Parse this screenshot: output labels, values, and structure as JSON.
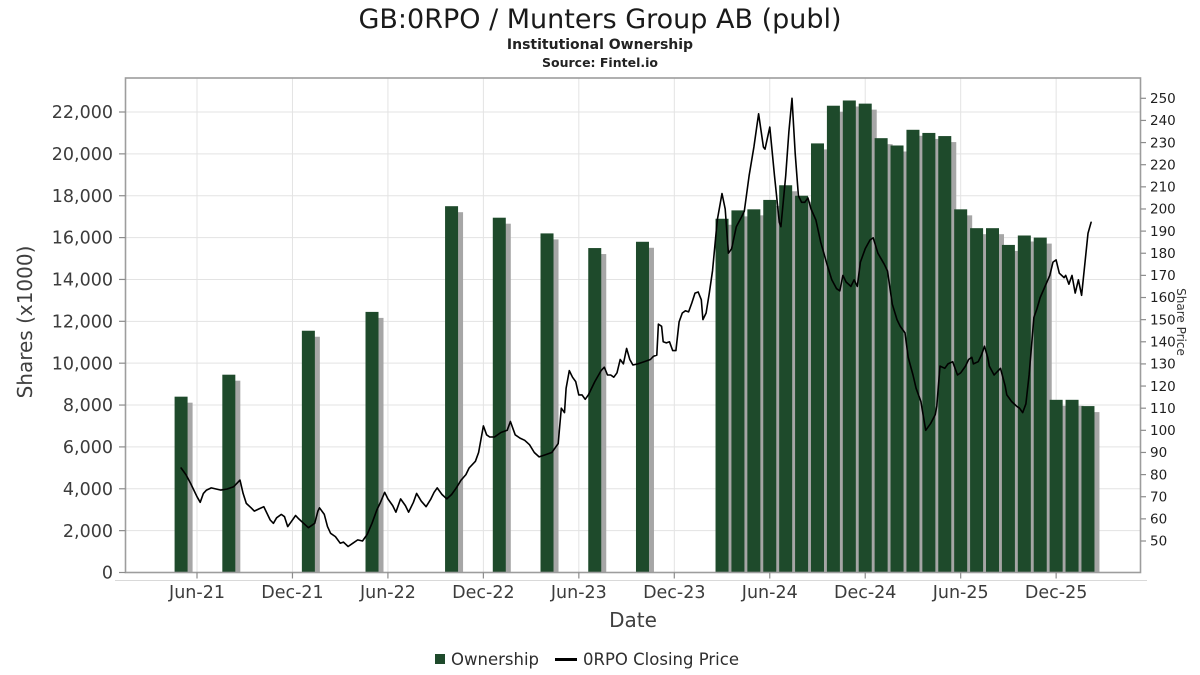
{
  "header": {
    "title": "GB:0RPO / Munters Group AB (publ)",
    "subtitle": "Institutional Ownership",
    "source": "Source: Fintel.io"
  },
  "legend": {
    "ownership_label": "Ownership",
    "price_label": "0RPO Closing Price"
  },
  "axes": {
    "x": {
      "label": "Date"
    },
    "y_left": {
      "label": "Shares (x1000)"
    },
    "y_right": {
      "label": "Share Price"
    }
  },
  "colors": {
    "bar": "#1e4a2b",
    "bar_shadow": "#a6a6a6",
    "line": "#000000",
    "grid": "#e3e3e3",
    "border": "#9d9d9d",
    "tick": "#8c8c8c",
    "tick_text": "#3c3c3c",
    "right_tick_text": "#1f1f1f"
  },
  "chart_data": {
    "type": "bar+line",
    "title": "GB:0RPO / Munters Group AB (publ)",
    "subtitle": "Institutional Ownership",
    "source": "Source: Fintel.io",
    "xlabel": "Date",
    "x_ticks": [
      "Jun-21",
      "Dec-21",
      "Jun-22",
      "Dec-22",
      "Jun-23",
      "Dec-23",
      "Jun-24",
      "Dec-24",
      "Jun-25",
      "Dec-25"
    ],
    "y_left": {
      "label": "Shares (x1000)",
      "ticks": [
        0,
        2000,
        4000,
        6000,
        8000,
        10000,
        12000,
        14000,
        16000,
        18000,
        20000,
        22000
      ],
      "range": [
        0,
        23600
      ]
    },
    "y_right": {
      "label": "Share Price",
      "ticks": [
        50,
        60,
        70,
        80,
        90,
        100,
        110,
        120,
        130,
        140,
        150,
        160,
        170,
        180,
        190,
        200,
        210,
        220,
        230,
        240,
        250
      ],
      "range": [
        36,
        259
      ]
    },
    "legend_position": "bottom",
    "grid": true,
    "bar_series": {
      "name": "Ownership",
      "type": "bar",
      "axis": "left",
      "unit": "shares x1000",
      "categories": [
        "May-21",
        "Aug-21",
        "Jan-22",
        "May-22",
        "Oct-22",
        "Jan-23",
        "Apr-23",
        "Jul-23",
        "Oct-23",
        "Mar-24",
        "Apr-24",
        "May-24",
        "Jun-24",
        "Jul-24",
        "Aug-24",
        "Sep-24",
        "Oct-24",
        "Nov-24",
        "Dec-24",
        "Jan-25",
        "Feb-25",
        "Mar-25",
        "Apr-25",
        "May-25",
        "Jun-25",
        "Jul-25",
        "Aug-25",
        "Sep-25",
        "Oct-25",
        "Nov-25",
        "Dec-25",
        "Jan-26",
        "Feb-26"
      ],
      "values": [
        8400,
        9450,
        11550,
        12450,
        17500,
        16950,
        16200,
        15500,
        15800,
        16900,
        17300,
        17350,
        17800,
        18500,
        18000,
        20500,
        22300,
        22550,
        22400,
        20750,
        20400,
        21150,
        21000,
        20850,
        17350,
        16450,
        16450,
        15650,
        16100,
        16000,
        8250,
        8250,
        7950
      ]
    },
    "line_series": {
      "name": "0RPO Closing Price",
      "type": "line",
      "axis": "right",
      "x_unit": "months_after_Jun-2021",
      "points": [
        [
          -1.0,
          83
        ],
        [
          -0.7,
          80
        ],
        [
          -0.4,
          76
        ],
        [
          0,
          70
        ],
        [
          0.2,
          67.5
        ],
        [
          0.4,
          71.5
        ],
        [
          0.6,
          73
        ],
        [
          0.9,
          74
        ],
        [
          1.2,
          73.5
        ],
        [
          1.5,
          73
        ],
        [
          1.9,
          73.5
        ],
        [
          2.3,
          74.5
        ],
        [
          2.7,
          77.5
        ],
        [
          2.9,
          71.5
        ],
        [
          3.1,
          67
        ],
        [
          3.4,
          65
        ],
        [
          3.6,
          63.5
        ],
        [
          3.9,
          64.5
        ],
        [
          4.2,
          65.5
        ],
        [
          4.6,
          59.5
        ],
        [
          4.8,
          58
        ],
        [
          5.0,
          60.5
        ],
        [
          5.3,
          62
        ],
        [
          5.5,
          61
        ],
        [
          5.7,
          56.5
        ],
        [
          5.9,
          58.5
        ],
        [
          6.2,
          61.5
        ],
        [
          6.4,
          60
        ],
        [
          6.7,
          58
        ],
        [
          7.0,
          56
        ],
        [
          7.4,
          58
        ],
        [
          7.6,
          63.5
        ],
        [
          7.7,
          65
        ],
        [
          8.0,
          62
        ],
        [
          8.2,
          56.5
        ],
        [
          8.4,
          53.5
        ],
        [
          8.7,
          52
        ],
        [
          9.0,
          49
        ],
        [
          9.2,
          49.5
        ],
        [
          9.5,
          47.5
        ],
        [
          9.8,
          49
        ],
        [
          10.1,
          50.5
        ],
        [
          10.4,
          50
        ],
        [
          10.7,
          53
        ],
        [
          11.0,
          58
        ],
        [
          11.3,
          64
        ],
        [
          11.5,
          67
        ],
        [
          11.8,
          72
        ],
        [
          12.0,
          69
        ],
        [
          12.3,
          66
        ],
        [
          12.5,
          63
        ],
        [
          12.8,
          69
        ],
        [
          13.1,
          66
        ],
        [
          13.3,
          63
        ],
        [
          13.6,
          67.5
        ],
        [
          13.8,
          71.5
        ],
        [
          14.1,
          68
        ],
        [
          14.4,
          65.5
        ],
        [
          14.7,
          69
        ],
        [
          14.9,
          72
        ],
        [
          15.1,
          74
        ],
        [
          15.4,
          71
        ],
        [
          15.7,
          69
        ],
        [
          16.0,
          71
        ],
        [
          16.3,
          74
        ],
        [
          16.6,
          77.5
        ],
        [
          16.9,
          80
        ],
        [
          17.1,
          83
        ],
        [
          17.5,
          86
        ],
        [
          17.7,
          90
        ],
        [
          18.0,
          102
        ],
        [
          18.2,
          98
        ],
        [
          18.4,
          97
        ],
        [
          18.7,
          97
        ],
        [
          19.1,
          99
        ],
        [
          19.5,
          100
        ],
        [
          19.7,
          104
        ],
        [
          20.0,
          98
        ],
        [
          20.3,
          96.5
        ],
        [
          20.6,
          95.5
        ],
        [
          20.9,
          93.5
        ],
        [
          21.2,
          90
        ],
        [
          21.5,
          88
        ],
        [
          21.9,
          89
        ],
        [
          22.3,
          90
        ],
        [
          22.6,
          93
        ],
        [
          22.7,
          94
        ],
        [
          22.9,
          110
        ],
        [
          23.1,
          108
        ],
        [
          23.2,
          119
        ],
        [
          23.4,
          127
        ],
        [
          23.6,
          124
        ],
        [
          23.8,
          122
        ],
        [
          24.0,
          116
        ],
        [
          24.2,
          116
        ],
        [
          24.4,
          114
        ],
        [
          24.6,
          116
        ],
        [
          25.0,
          122
        ],
        [
          25.4,
          127
        ],
        [
          25.6,
          128.5
        ],
        [
          25.8,
          125
        ],
        [
          26.0,
          125
        ],
        [
          26.2,
          124
        ],
        [
          26.4,
          126
        ],
        [
          26.6,
          132
        ],
        [
          26.8,
          130
        ],
        [
          27.0,
          137
        ],
        [
          27.2,
          132
        ],
        [
          27.4,
          129.5
        ],
        [
          27.7,
          130
        ],
        [
          28.1,
          131
        ],
        [
          28.5,
          132
        ],
        [
          28.7,
          133.5
        ],
        [
          28.9,
          134
        ],
        [
          29.0,
          148
        ],
        [
          29.2,
          147
        ],
        [
          29.3,
          140
        ],
        [
          29.5,
          139.5
        ],
        [
          29.7,
          140
        ],
        [
          29.9,
          136
        ],
        [
          30.1,
          136
        ],
        [
          30.3,
          149
        ],
        [
          30.5,
          153
        ],
        [
          30.7,
          154
        ],
        [
          30.9,
          153.5
        ],
        [
          31.1,
          157.5
        ],
        [
          31.3,
          162
        ],
        [
          31.5,
          162.5
        ],
        [
          31.7,
          159
        ],
        [
          31.8,
          150
        ],
        [
          32.0,
          153
        ],
        [
          32.2,
          162
        ],
        [
          32.4,
          172
        ],
        [
          32.7,
          195
        ],
        [
          33.0,
          207
        ],
        [
          33.2,
          200
        ],
        [
          33.4,
          180
        ],
        [
          33.6,
          182
        ],
        [
          33.9,
          192
        ],
        [
          34.2,
          196
        ],
        [
          34.4,
          199
        ],
        [
          34.7,
          215
        ],
        [
          35.0,
          228
        ],
        [
          35.3,
          243
        ],
        [
          35.6,
          228
        ],
        [
          35.7,
          227
        ],
        [
          36.0,
          237
        ],
        [
          36.3,
          215
        ],
        [
          36.6,
          194
        ],
        [
          36.7,
          192
        ],
        [
          37.0,
          215
        ],
        [
          37.2,
          235
        ],
        [
          37.4,
          250
        ],
        [
          37.6,
          225
        ],
        [
          37.8,
          206
        ],
        [
          38.0,
          203
        ],
        [
          38.2,
          203
        ],
        [
          38.4,
          205
        ],
        [
          38.6,
          200
        ],
        [
          38.9,
          195
        ],
        [
          39.2,
          185
        ],
        [
          39.6,
          175
        ],
        [
          39.9,
          168
        ],
        [
          40.2,
          164
        ],
        [
          40.4,
          163
        ],
        [
          40.6,
          170
        ],
        [
          40.8,
          167
        ],
        [
          41.1,
          165
        ],
        [
          41.3,
          168
        ],
        [
          41.5,
          165
        ],
        [
          41.7,
          176
        ],
        [
          42.0,
          182
        ],
        [
          42.3,
          186
        ],
        [
          42.5,
          187
        ],
        [
          42.8,
          180
        ],
        [
          43.2,
          175
        ],
        [
          43.4,
          172
        ],
        [
          43.7,
          157
        ],
        [
          44.0,
          150
        ],
        [
          44.2,
          147
        ],
        [
          44.5,
          144
        ],
        [
          44.7,
          133
        ],
        [
          45.0,
          125
        ],
        [
          45.2,
          119
        ],
        [
          45.5,
          113
        ],
        [
          45.8,
          100
        ],
        [
          46.1,
          103
        ],
        [
          46.4,
          107
        ],
        [
          46.5,
          111
        ],
        [
          46.7,
          129
        ],
        [
          47.0,
          128
        ],
        [
          47.2,
          130
        ],
        [
          47.5,
          131
        ],
        [
          47.7,
          127
        ],
        [
          47.8,
          125
        ],
        [
          48.0,
          126
        ],
        [
          48.3,
          129
        ],
        [
          48.5,
          132
        ],
        [
          48.7,
          133
        ],
        [
          48.8,
          130
        ],
        [
          49.1,
          131
        ],
        [
          49.3,
          134
        ],
        [
          49.5,
          138
        ],
        [
          49.7,
          133
        ],
        [
          49.8,
          129
        ],
        [
          50.1,
          125
        ],
        [
          50.5,
          128
        ],
        [
          50.8,
          120
        ],
        [
          50.9,
          116
        ],
        [
          51.2,
          113
        ],
        [
          51.5,
          111
        ],
        [
          51.7,
          110
        ],
        [
          51.9,
          108
        ],
        [
          52.1,
          112
        ],
        [
          52.3,
          125
        ],
        [
          52.6,
          151
        ],
        [
          52.8,
          155
        ],
        [
          53.0,
          160
        ],
        [
          53.3,
          165
        ],
        [
          53.6,
          170
        ],
        [
          53.8,
          176
        ],
        [
          54.0,
          177
        ],
        [
          54.2,
          171
        ],
        [
          54.5,
          169
        ],
        [
          54.6,
          170
        ],
        [
          54.8,
          166
        ],
        [
          55.0,
          170
        ],
        [
          55.2,
          162
        ],
        [
          55.4,
          168
        ],
        [
          55.6,
          161
        ],
        [
          55.8,
          175
        ],
        [
          56.0,
          189
        ],
        [
          56.2,
          194
        ]
      ]
    }
  }
}
